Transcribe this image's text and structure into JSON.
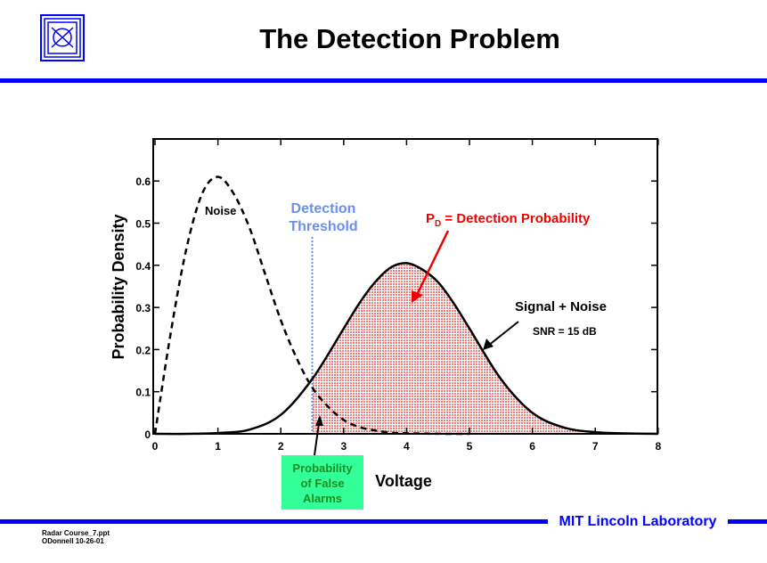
{
  "slide": {
    "title": "The Detection Problem",
    "footer_line1": "Radar Course_7.ppt",
    "footer_line2": "ODonnell 10-26-01",
    "lab_name": "MIT Lincoln Laboratory",
    "accent_color": "#0000ff"
  },
  "chart_data": {
    "type": "line",
    "xlabel": "Voltage",
    "ylabel": "Probability Density",
    "xlim": [
      0,
      8
    ],
    "ylim": [
      0,
      0.7
    ],
    "x_ticks": [
      0,
      1,
      2,
      3,
      4,
      5,
      6,
      7,
      8
    ],
    "y_ticks": [
      0,
      0.1,
      0.2,
      0.3,
      0.4,
      0.5,
      0.6
    ],
    "y_tick_labels": [
      "0",
      "0.1",
      "0.2",
      "0.3",
      "0.4",
      "0.5",
      "0.6"
    ],
    "threshold": 2.5,
    "series": [
      {
        "name": "Noise",
        "style": "dashed",
        "color": "#000000",
        "x": [
          0,
          0.25,
          0.5,
          0.75,
          1.0,
          1.25,
          1.5,
          1.75,
          2.0,
          2.25,
          2.5,
          2.75,
          3.0,
          3.25,
          3.5,
          3.75,
          4.0,
          4.5,
          5.0
        ],
        "y": [
          0,
          0.24,
          0.44,
          0.57,
          0.61,
          0.57,
          0.49,
          0.38,
          0.27,
          0.18,
          0.11,
          0.065,
          0.033,
          0.016,
          0.008,
          0.003,
          0.0013,
          0.0002,
          0
        ]
      },
      {
        "name": "Signal + Noise",
        "style": "solid",
        "color": "#000000",
        "x": [
          0,
          0.5,
          1.0,
          1.5,
          2.0,
          2.5,
          3.0,
          3.25,
          3.5,
          3.75,
          4.0,
          4.25,
          4.5,
          4.75,
          5.0,
          5.5,
          6.0,
          6.5,
          7.0,
          7.5,
          8.0
        ],
        "y": [
          0,
          0,
          0.002,
          0.01,
          0.045,
          0.13,
          0.25,
          0.31,
          0.36,
          0.395,
          0.405,
          0.39,
          0.36,
          0.31,
          0.25,
          0.13,
          0.05,
          0.015,
          0.004,
          0.001,
          0
        ]
      }
    ],
    "annotations": {
      "noise_label": "Noise",
      "threshold_label_line1": "Detection",
      "threshold_label_line2": "Threshold",
      "pd_prefix": "P",
      "pd_subscript": "D",
      "pd_text": " = Detection Probability",
      "signal_label": "Signal + Noise",
      "snr_label": "SNR = 15 dB",
      "pfa_line1": "Probability",
      "pfa_line2": "of False",
      "pfa_line3": "Alarms"
    },
    "colors": {
      "threshold": "#6b8ff0",
      "pd": "#ee0000",
      "pd_fill": "#f7a8a8",
      "pfa_box": "#33ff99",
      "pfa_text": "#228b22"
    }
  }
}
